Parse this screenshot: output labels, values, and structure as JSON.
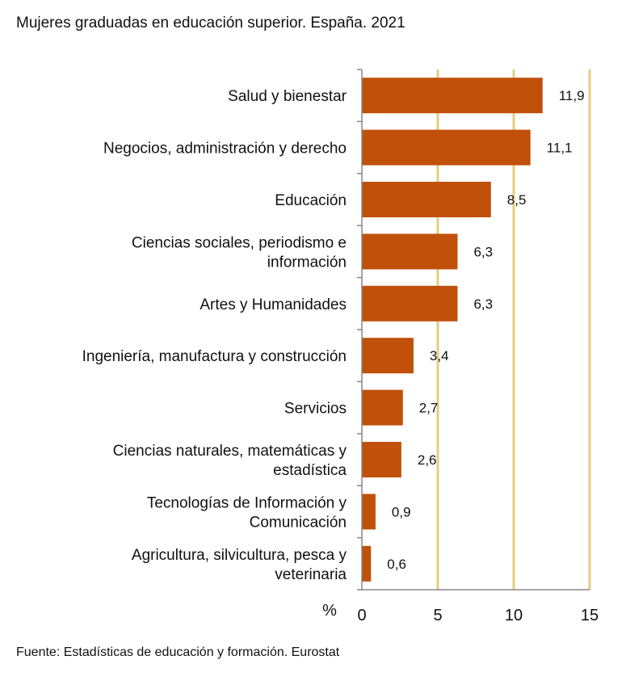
{
  "chart_data": {
    "type": "bar",
    "orientation": "horizontal",
    "title": "Mujeres graduadas en educación superior. España. 2021",
    "source": "Fuente: Estadísticas de educación y formación. Eurostat",
    "unit_label": "%",
    "categories": [
      [
        "Salud y bienestar"
      ],
      [
        "Negocios, administración y derecho"
      ],
      [
        "Educación"
      ],
      [
        "Ciencias sociales, periodismo e",
        "información"
      ],
      [
        "Artes y Humanidades"
      ],
      [
        "Ingeniería, manufactura y construcción"
      ],
      [
        "Servicios"
      ],
      [
        "Ciencias naturales, matemáticas y",
        "estadística"
      ],
      [
        "Tecnologías de Información y",
        "Comunicación"
      ],
      [
        "Agricultura, silvicultura, pesca y",
        "veterinaria"
      ]
    ],
    "values": [
      11.9,
      11.1,
      8.5,
      6.3,
      6.3,
      3.4,
      2.7,
      2.6,
      0.9,
      0.6
    ],
    "value_labels": [
      "11,9",
      "11,1",
      "8,5",
      "6,3",
      "6,3",
      "3,4",
      "2,7",
      "2,6",
      "0,9",
      "0,6"
    ],
    "xlim": [
      0,
      15
    ],
    "xticks": [
      0,
      5,
      10,
      15
    ],
    "grid": true,
    "bar_color": "#c0500a",
    "grid_color": "#e6cc80",
    "axis_color": "#888888"
  }
}
